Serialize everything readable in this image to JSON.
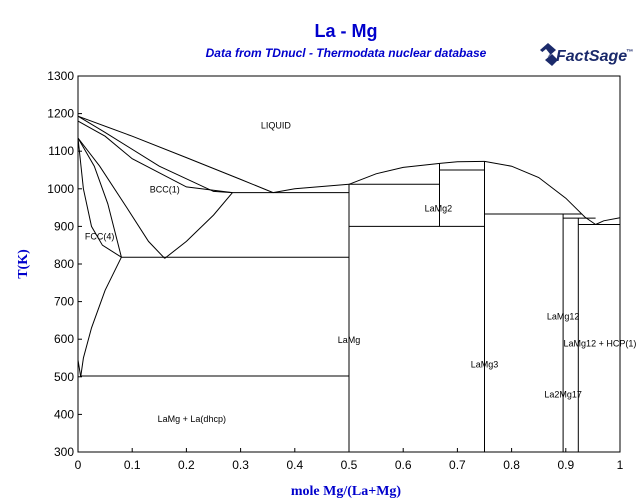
{
  "chart_data": {
    "type": "line",
    "title": "La - Mg",
    "subtitle": "Data from TDnucl - Thermodata nuclear database",
    "xlabel": "mole Mg/(La+Mg)",
    "ylabel": "T(K)",
    "xlim": [
      0,
      1
    ],
    "ylim": [
      300,
      1300
    ],
    "x_ticks": [
      0,
      0.1,
      0.2,
      0.3,
      0.4,
      0.5,
      0.6,
      0.7,
      0.8,
      0.9,
      1
    ],
    "x_tick_labels": [
      "0",
      "0.1",
      "0.2",
      "0.3",
      "0.4",
      "0.5",
      "0.6",
      "0.7",
      "0.8",
      "0.9",
      "1"
    ],
    "y_ticks": [
      300,
      400,
      500,
      600,
      700,
      800,
      900,
      1000,
      1100,
      1200,
      1300
    ],
    "y_tick_labels": [
      "300",
      "400",
      "500",
      "600",
      "700",
      "800",
      "900",
      "1000",
      "1100",
      "1200",
      "1300"
    ],
    "grid": false,
    "colors": {
      "text": "#0000cc",
      "lines": "#000000",
      "logo": "#1b2a6b"
    },
    "series": [
      {
        "points": [
          [
            0,
            1193
          ],
          [
            0.1,
            1140
          ],
          [
            0.2,
            1083
          ],
          [
            0.3,
            1025
          ],
          [
            0.36,
            990
          ]
        ]
      },
      {
        "points": [
          [
            0,
            1193
          ],
          [
            0.05,
            1150
          ],
          [
            0.15,
            1060
          ],
          [
            0.25,
            993
          ],
          [
            0.285,
            990
          ]
        ]
      },
      {
        "points": [
          [
            0,
            1180
          ],
          [
            0.05,
            1140
          ],
          [
            0.1,
            1080
          ],
          [
            0.2,
            1005
          ],
          [
            0.285,
            990
          ]
        ]
      },
      {
        "points": [
          [
            0,
            1135
          ],
          [
            0.04,
            1060
          ],
          [
            0.09,
            950
          ],
          [
            0.13,
            860
          ],
          [
            0.16,
            815
          ]
        ]
      },
      {
        "points": [
          [
            0.16,
            815
          ],
          [
            0.2,
            860
          ],
          [
            0.25,
            930
          ],
          [
            0.285,
            990
          ]
        ]
      },
      {
        "points": [
          [
            0,
            1135
          ],
          [
            0.03,
            1060
          ],
          [
            0.055,
            960
          ],
          [
            0.08,
            818
          ]
        ]
      },
      {
        "points": [
          [
            0,
            1135
          ],
          [
            0.01,
            1000
          ],
          [
            0.025,
            900
          ],
          [
            0.045,
            850
          ],
          [
            0.08,
            818
          ]
        ]
      },
      {
        "points": [
          [
            0.08,
            818
          ],
          [
            0.05,
            730
          ],
          [
            0.025,
            630
          ],
          [
            0.01,
            550
          ],
          [
            0.005,
            500
          ]
        ]
      },
      {
        "points": [
          [
            0.005,
            500
          ],
          [
            0,
            545
          ]
        ]
      },
      {
        "points": [
          [
            0.36,
            990
          ],
          [
            0.4,
            1000
          ],
          [
            0.5,
            1012
          ]
        ]
      },
      {
        "points": [
          [
            0.5,
            1012
          ],
          [
            0.55,
            1040
          ],
          [
            0.6,
            1057
          ],
          [
            0.67,
            1068
          ],
          [
            0.7,
            1072
          ],
          [
            0.75,
            1073
          ]
        ]
      },
      {
        "points": [
          [
            0.75,
            1073
          ],
          [
            0.8,
            1060
          ],
          [
            0.85,
            1030
          ],
          [
            0.9,
            975
          ],
          [
            0.935,
            925
          ],
          [
            0.955,
            905
          ]
        ]
      },
      {
        "points": [
          [
            0.955,
            905
          ],
          [
            0.97,
            915
          ],
          [
            1,
            923
          ]
        ]
      },
      {
        "points": [
          [
            0.285,
            990
          ],
          [
            0.5,
            990
          ]
        ]
      },
      {
        "points": [
          [
            0.08,
            818
          ],
          [
            0.5,
            818
          ]
        ]
      },
      {
        "points": [
          [
            0.005,
            502
          ],
          [
            0.5,
            502
          ]
        ]
      },
      {
        "points": [
          [
            0.5,
            1012
          ],
          [
            0.667,
            1012
          ]
        ]
      },
      {
        "points": [
          [
            0.667,
            1050
          ],
          [
            0.75,
            1050
          ]
        ]
      },
      {
        "points": [
          [
            0.5,
            900
          ],
          [
            0.75,
            900
          ]
        ]
      },
      {
        "points": [
          [
            0.75,
            933
          ],
          [
            0.93,
            933
          ]
        ]
      },
      {
        "points": [
          [
            0.895,
            922
          ],
          [
            0.955,
            922
          ]
        ]
      },
      {
        "points": [
          [
            0.923,
            905
          ],
          [
            1,
            905
          ]
        ]
      },
      {
        "points": [
          [
            0.5,
            300
          ],
          [
            0.5,
            1012
          ]
        ]
      },
      {
        "points": [
          [
            0.667,
            900
          ],
          [
            0.667,
            1068
          ]
        ]
      },
      {
        "points": [
          [
            0.75,
            300
          ],
          [
            0.75,
            1073
          ]
        ]
      },
      {
        "points": [
          [
            0.895,
            300
          ],
          [
            0.895,
            933
          ]
        ]
      },
      {
        "points": [
          [
            0.923,
            300
          ],
          [
            0.923,
            922
          ]
        ]
      }
    ],
    "annotations": [
      {
        "text": "LIQUID",
        "x": 0.365,
        "y": 1160
      },
      {
        "text": "BCC(1)",
        "x": 0.16,
        "y": 990
      },
      {
        "text": "FCC(4)",
        "x": 0.04,
        "y": 865
      },
      {
        "text": "LaMg2",
        "x": 0.665,
        "y": 940
      },
      {
        "text": "LaMg",
        "x": 0.5,
        "y": 590
      },
      {
        "text": "LaMg3",
        "x": 0.75,
        "y": 525
      },
      {
        "text": "LaMg12",
        "x": 0.895,
        "y": 652
      },
      {
        "text": "LaMg12 + HCP(1)",
        "x": 0.963,
        "y": 580
      },
      {
        "text": "La2Mg17",
        "x": 0.895,
        "y": 445
      },
      {
        "text": "LaMg + La(dhcp)",
        "x": 0.21,
        "y": 380
      }
    ]
  },
  "logo": {
    "text": "FactSage",
    "tm": "™"
  }
}
